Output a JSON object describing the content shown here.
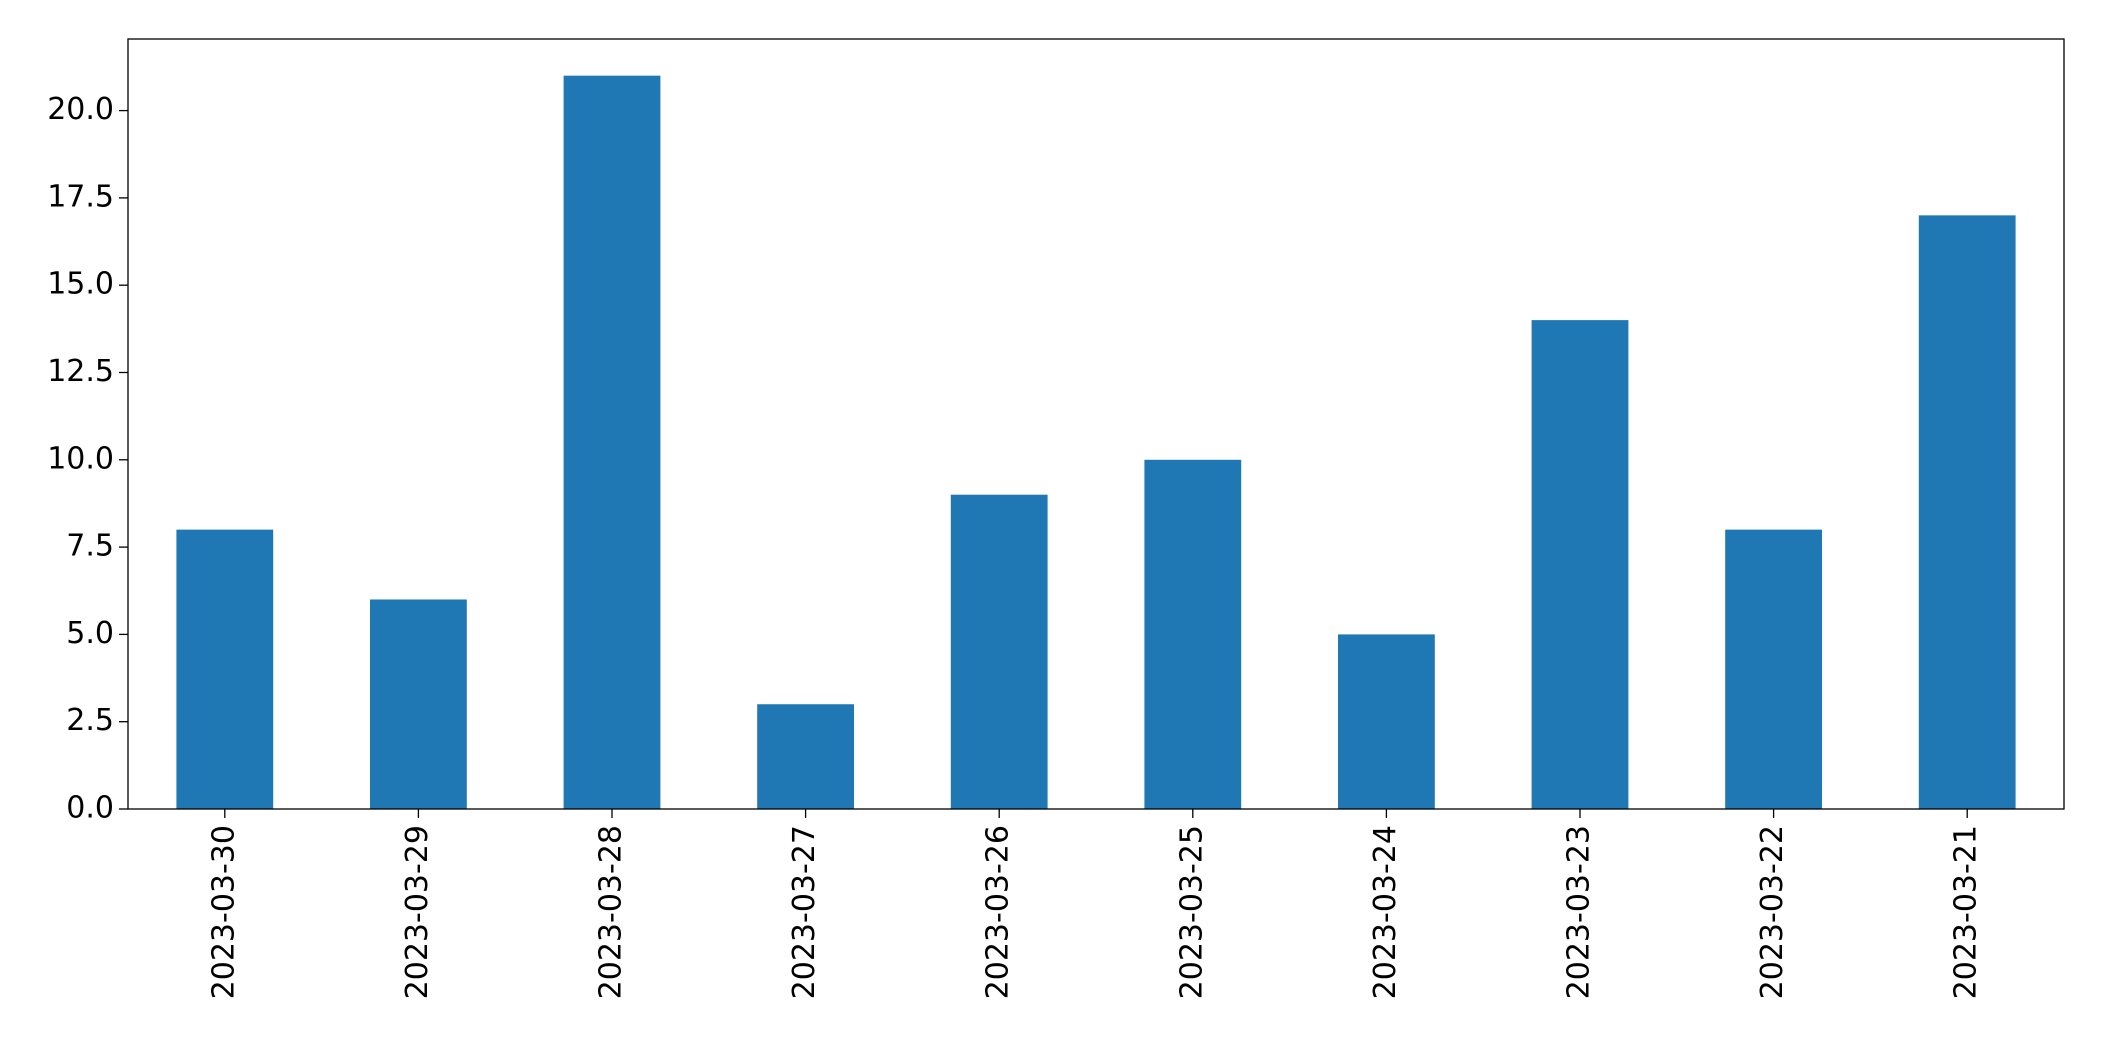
{
  "chart_data": {
    "type": "bar",
    "categories": [
      "2023-03-30",
      "2023-03-29",
      "2023-03-28",
      "2023-03-27",
      "2023-03-26",
      "2023-03-25",
      "2023-03-24",
      "2023-03-23",
      "2023-03-22",
      "2023-03-21"
    ],
    "values": [
      8,
      6,
      21,
      3,
      9,
      10,
      5,
      14,
      8,
      17
    ],
    "color": "#1f77b4",
    "ylim": [
      0,
      22.05
    ],
    "yticks": [
      {
        "value": 0,
        "label": "0.0"
      },
      {
        "value": 2.5,
        "label": "2.5"
      },
      {
        "value": 5,
        "label": "5.0"
      },
      {
        "value": 7.5,
        "label": "7.5"
      },
      {
        "value": 10,
        "label": "10.0"
      },
      {
        "value": 12.5,
        "label": "12.5"
      },
      {
        "value": 15,
        "label": "15.0"
      },
      {
        "value": 17.5,
        "label": "17.5"
      },
      {
        "value": 20,
        "label": "20.0"
      }
    ],
    "grid": false
  }
}
